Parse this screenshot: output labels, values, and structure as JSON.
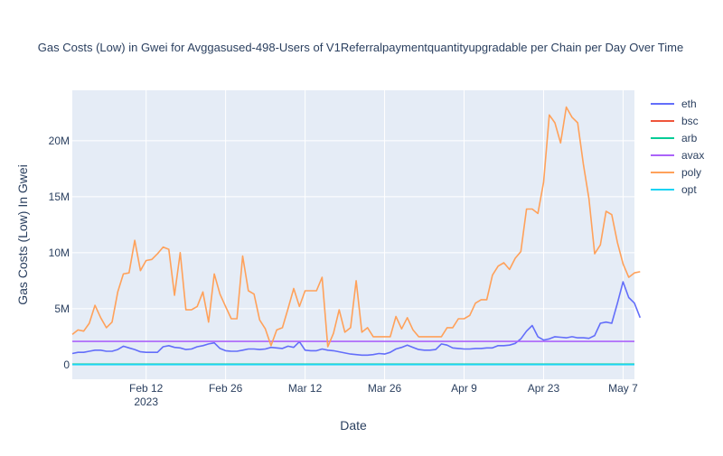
{
  "chart_data": {
    "type": "line",
    "title": "Gas Costs (Low) in Gwei for Avggasused-498-Users of V1Referralpaymentquantityupgradable per Chain per Day Over Time",
    "xlabel": "Date",
    "ylabel": "Gas Costs (Low) In Gwei",
    "x_range": [
      "2023-01-30",
      "2023-05-09"
    ],
    "ylim": [
      -1300000,
      24500000
    ],
    "x_ticks": [
      {
        "date": "2023-02-12",
        "label": "Feb 12",
        "sublabel": "2023"
      },
      {
        "date": "2023-02-26",
        "label": "Feb 26"
      },
      {
        "date": "2023-03-12",
        "label": "Mar 12"
      },
      {
        "date": "2023-03-26",
        "label": "Mar 26"
      },
      {
        "date": "2023-04-09",
        "label": "Apr 9"
      },
      {
        "date": "2023-04-23",
        "label": "Apr 23"
      },
      {
        "date": "2023-05-07",
        "label": "May 7"
      }
    ],
    "y_ticks": [
      {
        "value": 0,
        "label": "0"
      },
      {
        "value": 5000000,
        "label": "5M"
      },
      {
        "value": 10000000,
        "label": "10M"
      },
      {
        "value": 15000000,
        "label": "15M"
      },
      {
        "value": 20000000,
        "label": "20M"
      }
    ],
    "start_date": "2023-01-30",
    "series": [
      {
        "name": "eth",
        "color": "#636efa",
        "values": [
          1000000,
          1100000,
          1100000,
          1200000,
          1300000,
          1300000,
          1200000,
          1200000,
          1350000,
          1650000,
          1500000,
          1350000,
          1150000,
          1100000,
          1100000,
          1100000,
          1600000,
          1700000,
          1550000,
          1500000,
          1350000,
          1400000,
          1600000,
          1700000,
          1850000,
          1950000,
          1450000,
          1250000,
          1200000,
          1200000,
          1300000,
          1400000,
          1400000,
          1350000,
          1400000,
          1550000,
          1500000,
          1450000,
          1650000,
          1550000,
          2050000,
          1300000,
          1250000,
          1250000,
          1400000,
          1300000,
          1250000,
          1150000,
          1050000,
          950000,
          900000,
          850000,
          850000,
          900000,
          1000000,
          950000,
          1100000,
          1400000,
          1550000,
          1750000,
          1550000,
          1350000,
          1300000,
          1300000,
          1350000,
          1850000,
          1750000,
          1500000,
          1450000,
          1400000,
          1400000,
          1450000,
          1450000,
          1500000,
          1500000,
          1700000,
          1700000,
          1750000,
          1900000,
          2300000,
          3000000,
          3500000,
          2500000,
          2200000,
          2300000,
          2500000,
          2450000,
          2400000,
          2500000,
          2400000,
          2400000,
          2350000,
          2600000,
          3700000,
          3800000,
          3700000,
          5500000,
          7400000,
          6000000,
          5500000,
          4200000
        ]
      },
      {
        "name": "bsc",
        "color": "#ef553b",
        "constant": 30000
      },
      {
        "name": "arb",
        "color": "#00cc96",
        "constant": 50000
      },
      {
        "name": "avax",
        "color": "#ab63fa",
        "constant": 2080000
      },
      {
        "name": "poly",
        "color": "#ffa15a",
        "values": [
          2700000,
          3100000,
          3000000,
          3700000,
          5300000,
          4200000,
          3300000,
          3800000,
          6500000,
          8100000,
          8200000,
          11100000,
          8400000,
          9300000,
          9400000,
          9900000,
          10500000,
          10300000,
          6200000,
          10000000,
          4900000,
          4900000,
          5200000,
          6500000,
          3800000,
          8100000,
          6300000,
          5200000,
          4100000,
          4100000,
          9700000,
          6600000,
          6300000,
          4000000,
          3200000,
          1700000,
          3100000,
          3300000,
          5000000,
          6800000,
          5200000,
          6600000,
          6600000,
          6600000,
          7800000,
          1600000,
          2800000,
          4900000,
          2900000,
          3300000,
          7500000,
          2900000,
          3300000,
          2500000,
          2500000,
          2500000,
          2500000,
          4300000,
          3200000,
          4200000,
          3100000,
          2500000,
          2500000,
          2500000,
          2500000,
          2500000,
          3300000,
          3300000,
          4100000,
          4100000,
          4400000,
          5500000,
          5800000,
          5800000,
          8000000,
          8800000,
          9100000,
          8500000,
          9500000,
          10100000,
          13900000,
          13900000,
          13500000,
          16300000,
          22300000,
          21600000,
          19800000,
          23000000,
          22100000,
          21600000,
          17900000,
          14800000,
          9900000,
          10700000,
          13700000,
          13400000,
          10900000,
          9000000,
          7800000,
          8200000,
          8300000
        ]
      },
      {
        "name": "opt",
        "color": "#19d3f3",
        "constant": 10000
      }
    ]
  }
}
